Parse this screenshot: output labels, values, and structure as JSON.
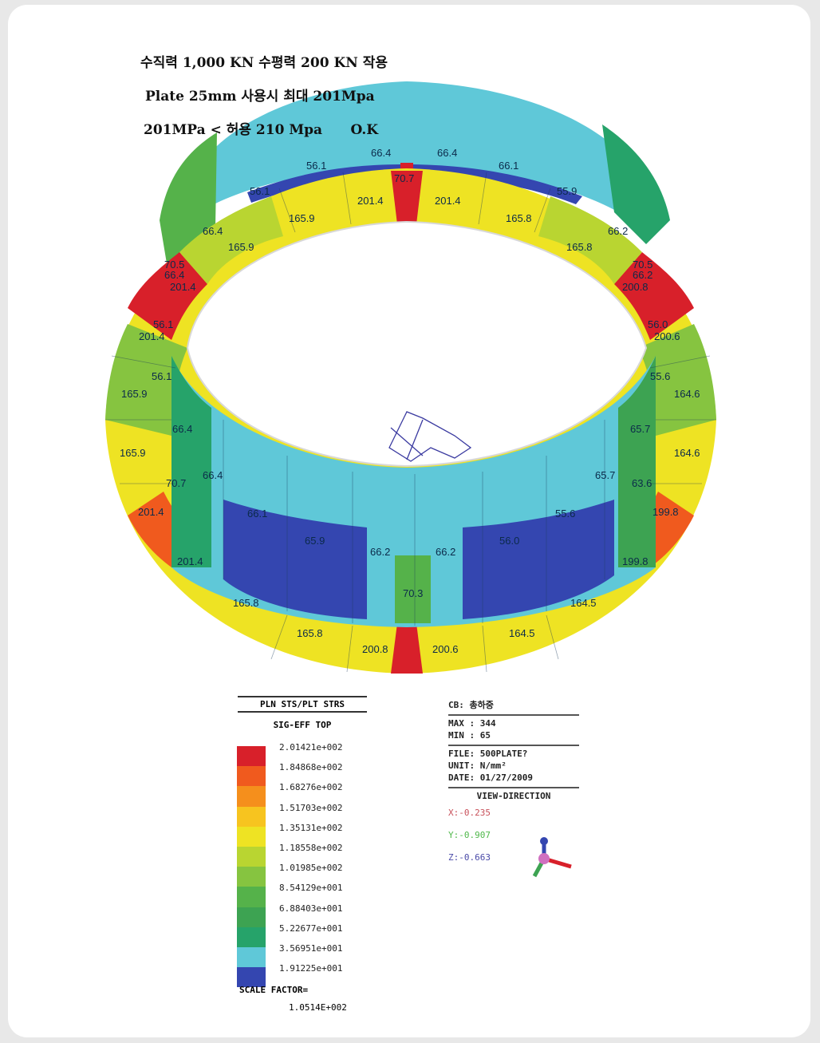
{
  "header": {
    "line1": "수직력 1,000 KN 수평력 200 KN 작용",
    "line2": "Plate 25mm 사용시 최대 201Mpa",
    "line3": "201MPa < 허용 210 Mpa      O.K"
  },
  "labels": {
    "top_inner": [
      "66.4",
      "70.7",
      "66.4"
    ],
    "top_56l": "56.1",
    "top_56r": "66.1",
    "top_561": "56.1",
    "top_559": "55.9",
    "ring_top_left": "201.4",
    "ring_top_right": "201.4",
    "ring_1659a": "165.9",
    "ring_1658a": "165.8",
    "ring_1659b": "165.9",
    "ring_1658b": "165.8",
    "left_664a": "66.4",
    "right_662a": "66.2",
    "left_705": "70.5",
    "left_664b": "66.4",
    "left_2014a": "201.4",
    "right_705": "70.5",
    "right_662b": "66.2",
    "right_2008": "200.8",
    "left_561": "56.1",
    "left_2014b": "201.4",
    "right_560": "56.0",
    "right_2006": "200.6",
    "left_561b": "56.1",
    "left_1659c": "165.9",
    "right_556": "55.6",
    "right_1646a": "164.6",
    "left_664c": "66.4",
    "left_1659d": "165.9",
    "right_657a": "65.7",
    "right_1646b": "164.6",
    "left_707": "70.7",
    "left_664d": "66.4",
    "right_657b": "65.7",
    "right_636": "63.6",
    "left_2014c": "201.4",
    "left_661": "66.1",
    "right_556b": "55.6",
    "right_1998a": "199.8",
    "inner_659": "65.9",
    "inner_662a": "66.2",
    "inner_662b": "66.2",
    "inner_560": "56.0",
    "left_2014d": "201.4",
    "right_1998b": "199.8",
    "inner_703": "70.3",
    "bot_1658a": "165.8",
    "bot_1645a": "164.5",
    "bot_1658b": "165.8",
    "bot_1645b": "164.5",
    "bot_2008": "200.8",
    "bot_2006": "200.6"
  },
  "legend": {
    "title": "PLN STS/PLT STRS",
    "subtitle": "SIG-EFF TOP",
    "colors": [
      "#d8202a",
      "#f05a1e",
      "#f58f1c",
      "#f7c41f",
      "#eee323",
      "#b9d531",
      "#86c440",
      "#55b24a",
      "#3da352",
      "#26a36a",
      "#5fc8d8",
      "#3446b0"
    ],
    "values": [
      "2.01421e+002",
      "1.84868e+002",
      "1.68276e+002",
      "1.51703e+002",
      "1.35131e+002",
      "1.18558e+002",
      "1.01985e+002",
      "8.54129e+001",
      "6.88403e+001",
      "5.22677e+001",
      "3.56951e+001",
      "1.91225e+001"
    ],
    "scale_label": "SCALE FACTOR=",
    "scale_value": "1.0514E+002"
  },
  "info": {
    "cb": "CB: 총하중",
    "max": "MAX : 344",
    "min": "MIN : 65",
    "file": "FILE: 500PLATE?",
    "unit": "UNIT: N/mm²",
    "date": "DATE: 01/27/2009",
    "view_title": "VIEW-DIRECTION",
    "x": "X:-0.235",
    "y": "Y:-0.907",
    "z": "Z:-0.663",
    "x_color": "#c8505a",
    "y_color": "#4fb84a",
    "z_color": "#4a4aa8"
  }
}
